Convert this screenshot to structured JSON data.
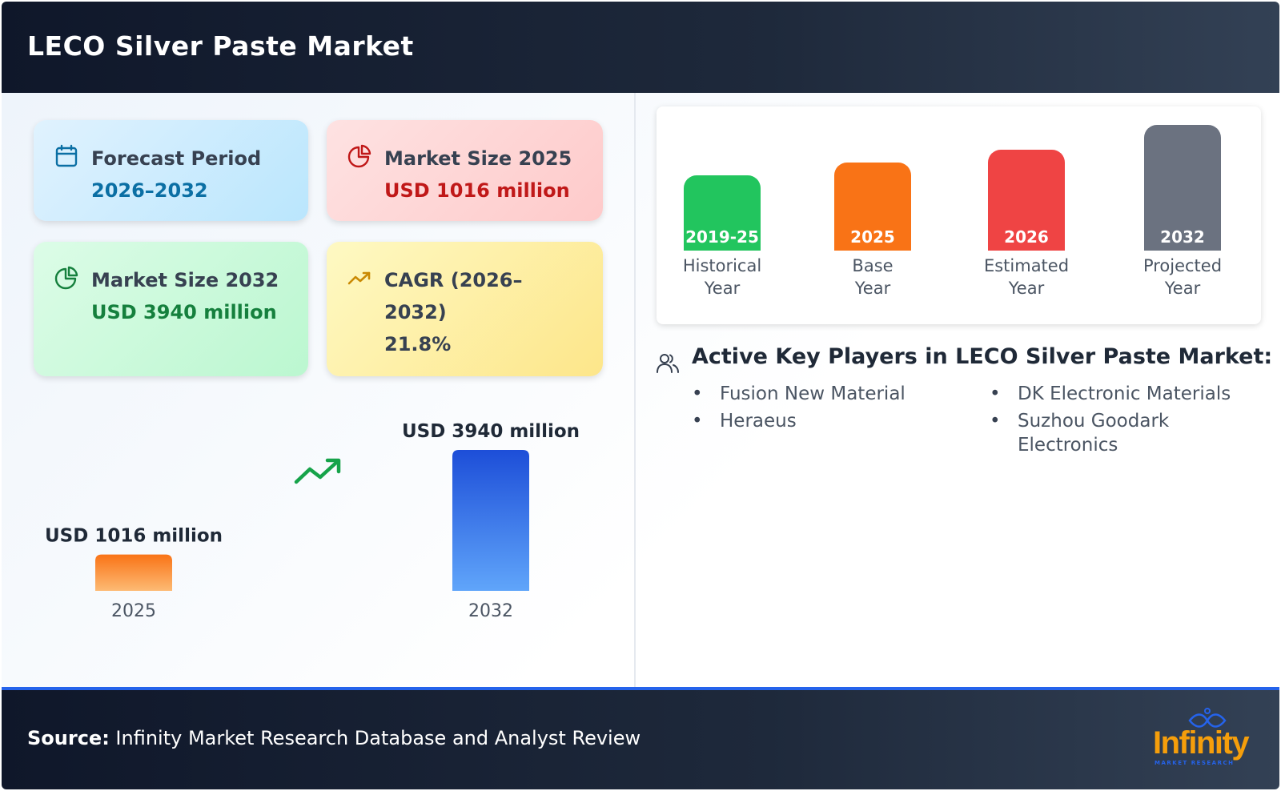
{
  "header": {
    "title": "LECO Silver Paste Market"
  },
  "cards": {
    "forecast": {
      "label": "Forecast Period",
      "value": "2026–2032",
      "icon": "calendar-icon"
    },
    "size2025": {
      "label": "Market Size 2025",
      "value": "USD 1016 million",
      "icon": "pie-chart-icon"
    },
    "size2032": {
      "label": "Market Size 2032",
      "value": "USD 3940 million",
      "icon": "pie-chart-icon"
    },
    "cagr": {
      "label": "CAGR (2026–2032)",
      "value": "21.8%",
      "icon": "trending-up-icon"
    }
  },
  "chart_data": [
    {
      "type": "bar",
      "categories": [
        "2025",
        "2032"
      ],
      "values": [
        1016,
        3940
      ],
      "value_labels": [
        "USD 1016 million",
        "USD 3940 million"
      ],
      "colors": [
        "#f97316",
        "#1d4ed8"
      ],
      "ylim": [
        0,
        3940
      ],
      "grid": false
    },
    {
      "type": "bar",
      "categories": [
        "2019-25",
        "2025",
        "2026",
        "2032"
      ],
      "category_captions": [
        "Historical Year",
        "Base Year",
        "Estimated Year",
        "Projected Year"
      ],
      "colors": [
        "#22c55e",
        "#f97316",
        "#ef4444",
        "#6b7280"
      ],
      "grid": false
    }
  ],
  "players": {
    "title": "Active Key Players in LECO Silver Paste Market:",
    "column1": [
      "Fusion New Material",
      "Heraeus"
    ],
    "column2": [
      "DK Electronic Materials",
      "Suzhou Goodark Electronics"
    ]
  },
  "footer": {
    "source_label": "Source:",
    "source_text": " Infinity Market Research Database and Analyst Review",
    "logo_word": "Infinity",
    "logo_tag": "MARKET RESEARCH"
  }
}
